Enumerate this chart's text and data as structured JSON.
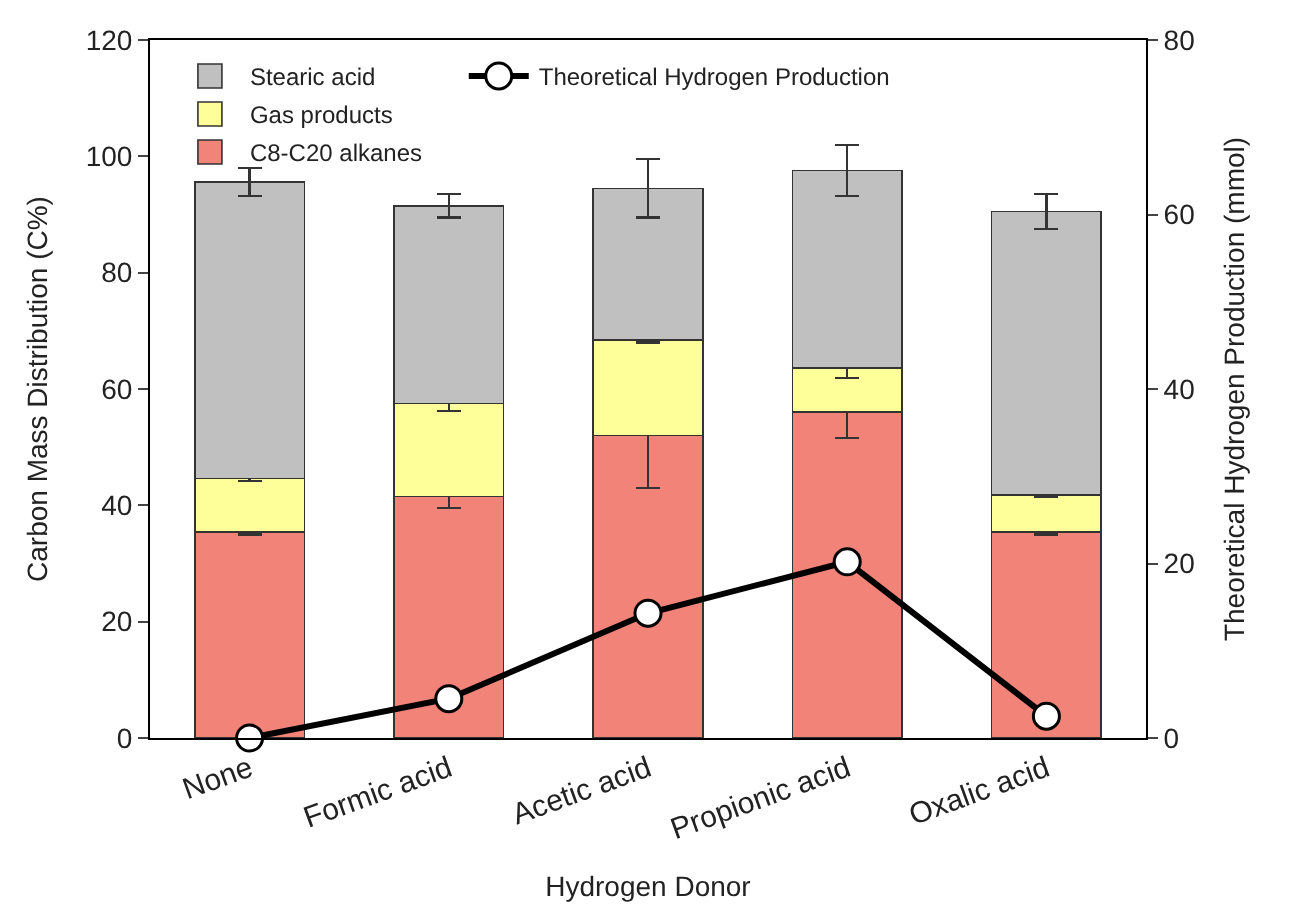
{
  "chart_data": {
    "type": "bar",
    "stacked": true,
    "xlabel": "Hydrogen Donor",
    "ylabel": "Carbon Mass Distribution (C%)",
    "y2label": "Theoretical Hydrogen Production (mmol)",
    "categories": [
      "None",
      "Formic acid",
      "Acetic acid",
      "Propionic acid",
      "Oxalic acid"
    ],
    "series": [
      {
        "name": "C8-C20 alkanes",
        "color": "#f28379",
        "values": [
          35.4,
          41.5,
          52.0,
          56.0,
          35.4
        ],
        "errors": [
          0.4,
          2.0,
          9.0,
          4.4,
          0.4
        ]
      },
      {
        "name": "Gas products",
        "color": "#ffff99",
        "values": [
          9.2,
          16.0,
          16.4,
          7.6,
          6.4
        ],
        "errors": [
          0.4,
          1.3,
          0.4,
          1.7,
          0.4
        ]
      },
      {
        "name": "Stearic acid",
        "color": "#c0c0c0",
        "values": [
          51.0,
          34.0,
          26.1,
          34.0,
          48.7
        ],
        "errors": [
          2.4,
          2.0,
          5.0,
          4.4,
          3.0
        ]
      },
      {
        "name": "Theoretical Hydrogen Production",
        "type": "line",
        "axis": "y2",
        "color": "#000000",
        "marker": "circle",
        "values": [
          0.0,
          4.5,
          14.3,
          20.2,
          2.5
        ]
      }
    ],
    "ylim": [
      0,
      120
    ],
    "yticks": [
      0,
      20,
      40,
      60,
      80,
      100,
      120
    ],
    "y2lim": [
      0,
      80
    ],
    "y2ticks": [
      0,
      20,
      40,
      60,
      80
    ],
    "legend": "top left"
  }
}
